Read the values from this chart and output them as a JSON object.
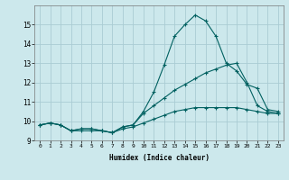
{
  "x": [
    0,
    1,
    2,
    3,
    4,
    5,
    6,
    7,
    8,
    9,
    10,
    11,
    12,
    13,
    14,
    15,
    16,
    17,
    18,
    19,
    20,
    21,
    22,
    23
  ],
  "line1": [
    9.8,
    9.9,
    9.8,
    9.5,
    9.6,
    9.6,
    9.5,
    9.4,
    9.7,
    9.8,
    10.5,
    11.5,
    12.9,
    14.4,
    15.0,
    15.5,
    15.2,
    14.4,
    13.0,
    12.6,
    11.9,
    11.7,
    10.6,
    10.5
  ],
  "line2": [
    9.8,
    9.9,
    9.8,
    9.5,
    9.6,
    9.6,
    9.5,
    9.4,
    9.7,
    9.8,
    10.4,
    10.8,
    11.2,
    11.6,
    11.9,
    12.2,
    12.5,
    12.7,
    12.9,
    13.0,
    12.0,
    10.8,
    10.5,
    10.4
  ],
  "line3": [
    9.8,
    9.9,
    9.8,
    9.5,
    9.5,
    9.5,
    9.5,
    9.4,
    9.6,
    9.7,
    9.9,
    10.1,
    10.3,
    10.5,
    10.6,
    10.7,
    10.7,
    10.7,
    10.7,
    10.7,
    10.6,
    10.5,
    10.4,
    10.4
  ],
  "bg_color": "#cce8ec",
  "grid_color": "#aaccd4",
  "line_color": "#006060",
  "xlabel": "Humidex (Indice chaleur)",
  "ylim": [
    9.0,
    16.0
  ],
  "xlim": [
    -0.5,
    23.5
  ],
  "yticks": [
    9,
    10,
    11,
    12,
    13,
    14,
    15
  ],
  "xticks": [
    0,
    1,
    2,
    3,
    4,
    5,
    6,
    7,
    8,
    9,
    10,
    11,
    12,
    13,
    14,
    15,
    16,
    17,
    18,
    19,
    20,
    21,
    22,
    23
  ]
}
